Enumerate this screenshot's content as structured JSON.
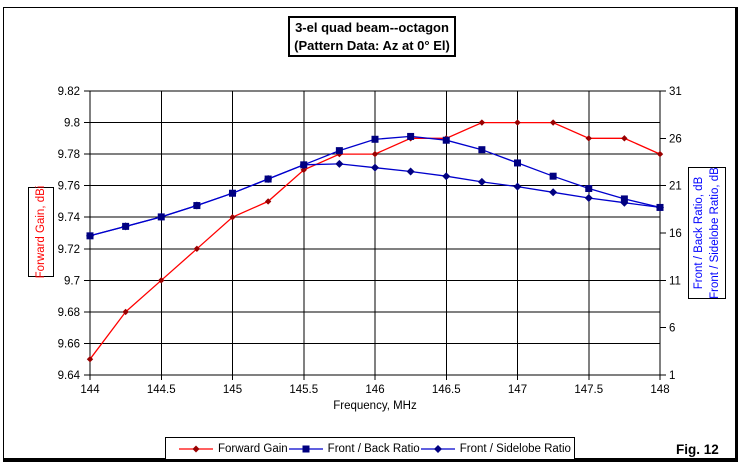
{
  "title": {
    "line1": "3-el quad beam--octagon",
    "line2": "(Pattern Data: Az at 0° El)"
  },
  "figure_label": "Fig. 12",
  "colors": {
    "forward_gain_line": "#ff0000",
    "forward_gain_marker": "#990000",
    "ratio_line": "#0000cc",
    "ratio_marker": "#000080",
    "grid": "#000000",
    "left_axis_text": "#ff0000",
    "right_axis_text": "#0000ff"
  },
  "axes": {
    "x": {
      "title": "Frequency, MHz",
      "tick_labels": [
        "144",
        "144.5",
        "145",
        "145.5",
        "146",
        "146.5",
        "147",
        "147.5",
        "148"
      ],
      "min": 144,
      "max": 148
    },
    "y_left": {
      "title": "Forward Gain, dBi",
      "tick_labels": [
        "9.82",
        "9.8",
        "9.78",
        "9.76",
        "9.74",
        "9.72",
        "9.7",
        "9.68",
        "9.66",
        "9.64"
      ],
      "min": 9.64,
      "max": 9.82
    },
    "y_right": {
      "title_line1": "Front / Back Ratio,  dB",
      "title_line2": "Front / Sidelobe Ratio,  dB",
      "tick_labels": [
        "31",
        "26",
        "21",
        "16",
        "11",
        "6",
        "1"
      ],
      "min": 1,
      "max": 31
    }
  },
  "chart_data": {
    "type": "line",
    "title": "3-el quad beam--octagon (Pattern Data: Az at 0° El)",
    "xlabel": "Frequency, MHz",
    "ylabel_left": "Forward Gain, dBi",
    "ylabel_right": "Front / Back Ratio, dB; Front / Sidelobe Ratio, dB",
    "xlim": [
      144,
      148
    ],
    "ylim_left": [
      9.64,
      9.82
    ],
    "ylim_right": [
      1,
      31
    ],
    "grid": true,
    "legend_position": "bottom",
    "x": [
      144,
      144.25,
      144.5,
      144.75,
      145,
      145.25,
      145.5,
      145.75,
      146,
      146.25,
      146.5,
      146.75,
      147,
      147.25,
      147.5,
      147.75,
      148
    ],
    "series": [
      {
        "name": "Forward Gain",
        "axis": "left",
        "color": "#ff0000",
        "marker": "diamond",
        "marker_color": "#990000",
        "values": [
          9.65,
          9.68,
          9.7,
          9.72,
          9.74,
          9.75,
          9.77,
          9.78,
          9.78,
          9.79,
          9.79,
          9.8,
          9.8,
          9.8,
          9.79,
          9.79,
          9.78
        ]
      },
      {
        "name": "Front / Back Ratio",
        "axis": "right",
        "color": "#0000cc",
        "marker": "square",
        "marker_color": "#000080",
        "values": [
          15.7,
          16.7,
          17.7,
          18.9,
          20.2,
          21.7,
          23.2,
          24.7,
          25.9,
          26.2,
          25.8,
          24.8,
          23.4,
          22.0,
          20.7,
          19.6,
          18.7
        ]
      },
      {
        "name": "Front / Sidelobe Ratio",
        "axis": "right",
        "color": "#0000cc",
        "marker": "diamond",
        "marker_color": "#000080",
        "values": [
          15.7,
          16.7,
          17.7,
          18.9,
          20.2,
          21.7,
          23.2,
          23.3,
          22.9,
          22.5,
          22.0,
          21.4,
          20.9,
          20.3,
          19.7,
          19.2,
          18.7
        ]
      }
    ]
  }
}
